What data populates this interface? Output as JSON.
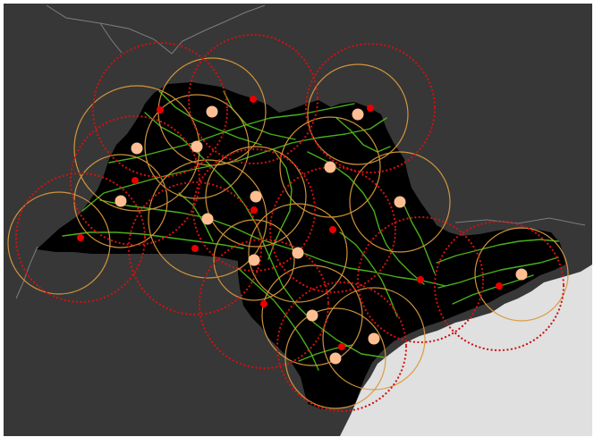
{
  "map": {
    "colors": {
      "background": "#373737",
      "land": "#000000",
      "sea": "#e0e0e0",
      "border": "#8a8a8a",
      "river": "#4caf1a",
      "red_ring": "#d11111",
      "orange_ring": "#d99a3c",
      "red_center": "#e80000",
      "orange_center": "#ffbf93"
    },
    "icons": {
      "red_center": "red-dot-icon",
      "orange_center": "peach-dot-icon"
    }
  }
}
